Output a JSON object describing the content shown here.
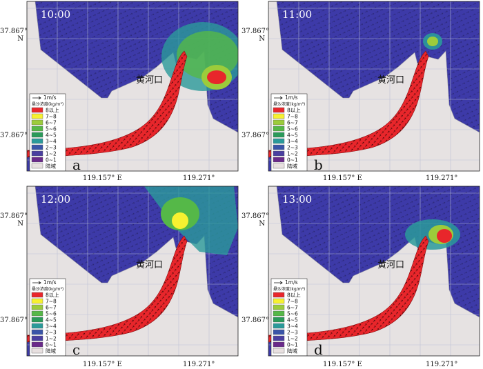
{
  "lat_label": "37.867°",
  "lat_n": "N",
  "lon_west_label": "119.157° E",
  "lon_east_label": "119.271°",
  "river_mouth_label": "黄河口",
  "legend": {
    "arrow_label": "1m/s",
    "title": "悬沙浓度(kg/m³)",
    "items": [
      {
        "label": "8以上",
        "color": "#e8262b"
      },
      {
        "label": "7~8",
        "color": "#f7f130"
      },
      {
        "label": "6~7",
        "color": "#9ccc3b"
      },
      {
        "label": "5~6",
        "color": "#55b848"
      },
      {
        "label": "4~5",
        "color": "#2a9a5a"
      },
      {
        "label": "3~4",
        "color": "#2a9a9a"
      },
      {
        "label": "2~3",
        "color": "#3a55a8"
      },
      {
        "label": "1~2",
        "color": "#4a3fa0"
      },
      {
        "label": "0~1",
        "color": "#6a2a8a"
      },
      {
        "label": "陆域",
        "color": "#e8e0e0"
      }
    ]
  },
  "panels": [
    {
      "id": "a",
      "time": "10:00",
      "letter": "a",
      "plume": "big-red-plume"
    },
    {
      "id": "b",
      "time": "11:00",
      "letter": "b",
      "plume": "small-tip"
    },
    {
      "id": "c",
      "time": "12:00",
      "letter": "c",
      "plume": "yellow-plume"
    },
    {
      "id": "d",
      "time": "13:00",
      "letter": "d",
      "plume": "red-east-plume"
    }
  ],
  "colors": {
    "sea": "#3d3aa8",
    "land": "#e6e2e2",
    "river": "#e8262b",
    "grid": "#b9bfd6"
  }
}
